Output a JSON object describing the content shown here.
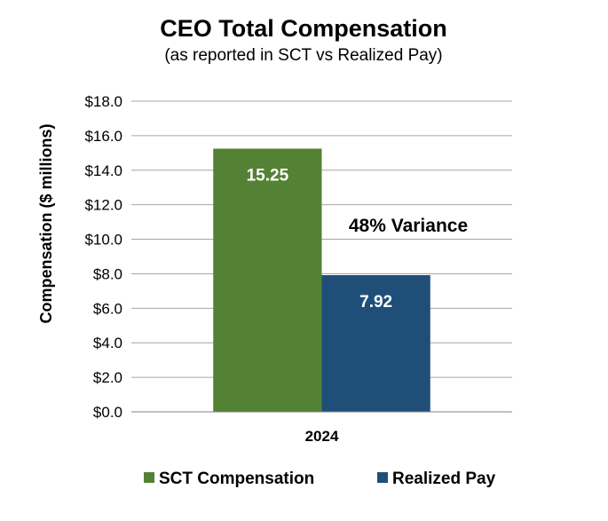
{
  "chart_data": {
    "type": "bar",
    "title": "CEO Total Compensation",
    "subtitle": "(as reported in SCT vs Realized Pay)",
    "ylabel": "Compensation ($ millions)",
    "xlabel": "",
    "categories": [
      "2024"
    ],
    "series": [
      {
        "name": "SCT Compensation",
        "values": [
          15.25
        ],
        "label": "15.25",
        "color": "#548235"
      },
      {
        "name": "Realized Pay",
        "values": [
          7.92
        ],
        "label": "7.92",
        "color": "#1F4E79"
      }
    ],
    "ylim": [
      0,
      18
    ],
    "yticks": [
      {
        "value": 0,
        "label": "$0.0"
      },
      {
        "value": 2,
        "label": "$2.0"
      },
      {
        "value": 4,
        "label": "$4.0"
      },
      {
        "value": 6,
        "label": "$6.0"
      },
      {
        "value": 8,
        "label": "$8.0"
      },
      {
        "value": 10,
        "label": "$10.0"
      },
      {
        "value": 12,
        "label": "$12.0"
      },
      {
        "value": 14,
        "label": "$14.0"
      },
      {
        "value": 16,
        "label": "$16.0"
      },
      {
        "value": 18,
        "label": "$18.0"
      }
    ],
    "annotation": "48% Variance",
    "grid": true,
    "legend_position": "bottom"
  }
}
